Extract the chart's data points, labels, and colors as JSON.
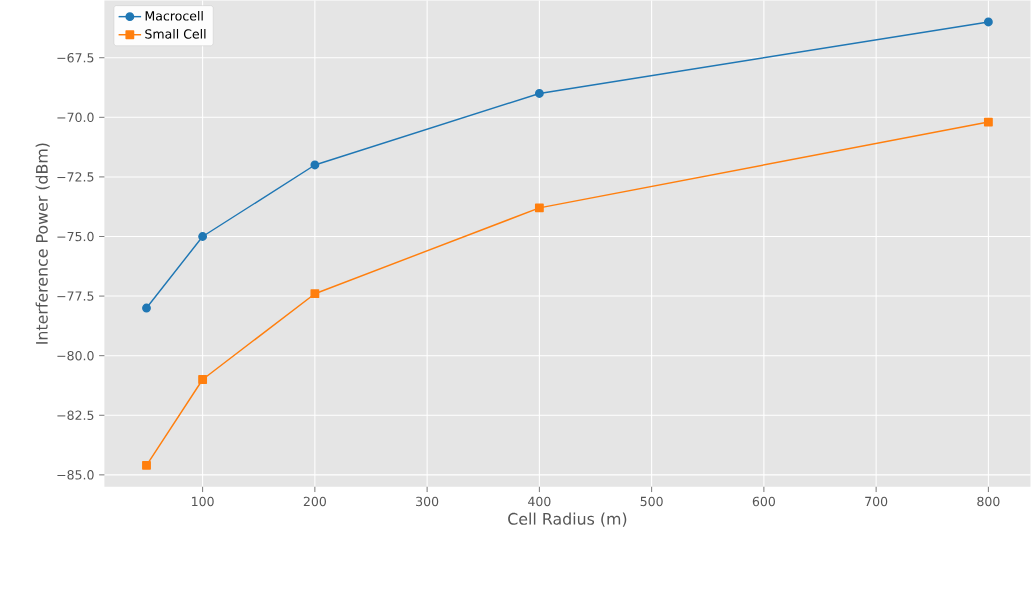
{
  "chart_data": {
    "type": "line",
    "xlabel": "Cell Radius (m)",
    "ylabel": "Interference Power (dBm)",
    "x": [
      50,
      100,
      200,
      400,
      800
    ],
    "series": [
      {
        "name": "Macrocell",
        "color": "#1f77b4",
        "marker": "circle",
        "values": [
          -78,
          -75,
          -72,
          -69,
          -66
        ]
      },
      {
        "name": "Small Cell",
        "color": "#ff7f0e",
        "marker": "square",
        "values": [
          -84.6,
          -81,
          -77.4,
          -73.8,
          -70.2
        ]
      }
    ],
    "xlim": [
      12.5,
      837.5
    ],
    "ylim": [
      -85.5,
      -65.1
    ],
    "xticks": [
      100,
      200,
      300,
      400,
      500,
      600,
      700,
      800
    ],
    "yticks": [
      {
        "value": -85,
        "label": "−85.0"
      },
      {
        "value": -82.5,
        "label": "−82.5"
      },
      {
        "value": -80,
        "label": "−80.0"
      },
      {
        "value": -77.5,
        "label": "−77.5"
      },
      {
        "value": -75,
        "label": "−75.0"
      },
      {
        "value": -72.5,
        "label": "−72.5"
      },
      {
        "value": -70,
        "label": "−70.0"
      },
      {
        "value": -67.5,
        "label": "−67.5"
      }
    ],
    "grid": true,
    "legend": "top left",
    "line_style": "solid"
  }
}
